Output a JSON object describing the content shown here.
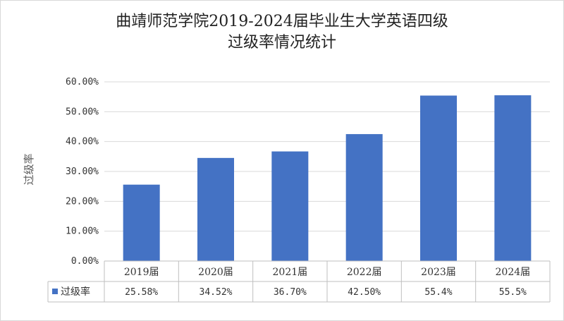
{
  "chart_data": {
    "type": "bar",
    "title_line1": "曲靖师范学院2019-2024届毕业生大学英语四级",
    "title_line2": "过级率情况统计",
    "ylabel": "过级率",
    "ylim": [
      0,
      60
    ],
    "yticks": [
      "0.00%",
      "10.00%",
      "20.00%",
      "30.00%",
      "40.00%",
      "50.00%",
      "60.00%"
    ],
    "categories": [
      "2019届",
      "2020届",
      "2021届",
      "2022届",
      "2023届",
      "2024届"
    ],
    "series": [
      {
        "name": "过级率",
        "color": "#4472C4",
        "values": [
          25.58,
          34.52,
          36.7,
          42.5,
          55.4,
          55.5
        ],
        "labels": [
          "25.58%",
          "34.52%",
          "36.70%",
          "42.50%",
          "55.4%",
          "55.5%"
        ]
      }
    ],
    "grid": true,
    "legend": "data-table-left"
  }
}
